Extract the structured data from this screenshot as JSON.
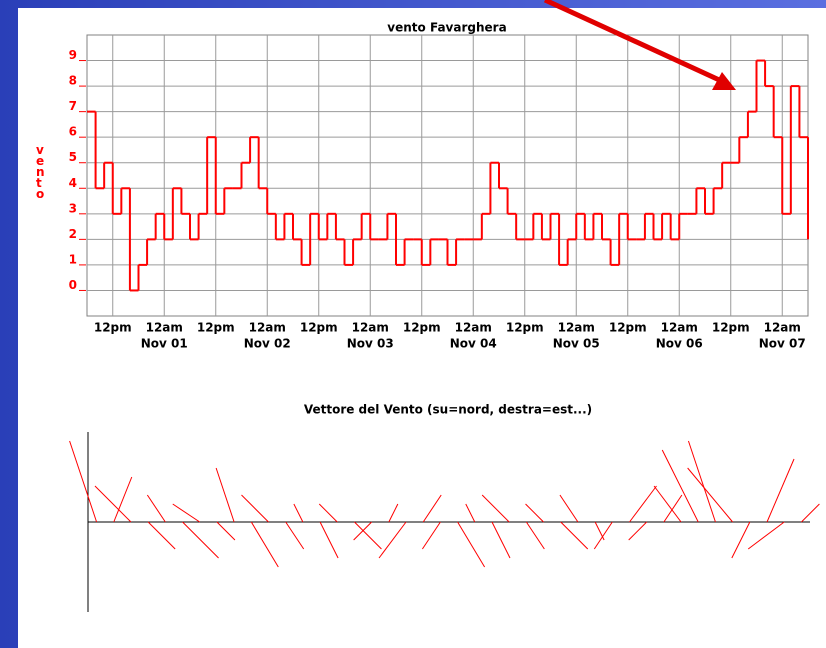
{
  "chart_data": [
    {
      "type": "step",
      "title": "vento Favarghera",
      "y_label": "vento",
      "color": "#ff0000",
      "grid": true,
      "xlim": [
        -18,
        150
      ],
      "ylim": [
        -1,
        10
      ],
      "yticks": [
        0,
        1,
        2,
        3,
        4,
        5,
        6,
        7,
        8,
        9
      ],
      "xticks": [
        {
          "value": -12,
          "label": "12pm"
        },
        {
          "value": 0,
          "label": "12am"
        },
        {
          "value": 12,
          "label": "12pm"
        },
        {
          "value": 24,
          "label": "12am"
        },
        {
          "value": 36,
          "label": "12pm"
        },
        {
          "value": 48,
          "label": "12am"
        },
        {
          "value": 60,
          "label": "12pm"
        },
        {
          "value": 72,
          "label": "12am"
        },
        {
          "value": 84,
          "label": "12pm"
        },
        {
          "value": 96,
          "label": "12am"
        },
        {
          "value": 108,
          "label": "12pm"
        },
        {
          "value": 120,
          "label": "12am"
        },
        {
          "value": 132,
          "label": "12pm"
        },
        {
          "value": 144,
          "label": "12am"
        }
      ],
      "xtick_dates": [
        {
          "value": 0,
          "label": "Nov 01"
        },
        {
          "value": 24,
          "label": "Nov 02"
        },
        {
          "value": 48,
          "label": "Nov 03"
        },
        {
          "value": 72,
          "label": "Nov 04"
        },
        {
          "value": 96,
          "label": "Nov 05"
        },
        {
          "value": 120,
          "label": "Nov 06"
        },
        {
          "value": 144,
          "label": "Nov 07"
        }
      ],
      "x": [
        -18,
        -16,
        -14,
        -12,
        -10,
        -8,
        -6,
        -4,
        -2,
        0,
        2,
        4,
        6,
        8,
        10,
        12,
        14,
        16,
        18,
        20,
        22,
        24,
        26,
        28,
        30,
        32,
        34,
        36,
        38,
        40,
        42,
        44,
        46,
        48,
        50,
        52,
        54,
        56,
        58,
        60,
        62,
        64,
        66,
        68,
        70,
        72,
        74,
        76,
        78,
        80,
        82,
        84,
        86,
        88,
        90,
        92,
        94,
        96,
        98,
        100,
        102,
        104,
        106,
        108,
        110,
        112,
        114,
        116,
        118,
        120,
        122,
        124,
        126,
        128,
        130,
        132,
        134,
        136,
        138,
        140,
        142,
        144,
        146,
        148,
        150
      ],
      "values": [
        7,
        4,
        5,
        3,
        4,
        0,
        1,
        2,
        3,
        2,
        4,
        3,
        2,
        3,
        6,
        3,
        4,
        4,
        5,
        6,
        4,
        3,
        2,
        3,
        2,
        1,
        3,
        2,
        3,
        2,
        1,
        2,
        3,
        2,
        2,
        3,
        1,
        2,
        2,
        1,
        2,
        2,
        1,
        2,
        2,
        2,
        3,
        5,
        4,
        3,
        2,
        2,
        3,
        2,
        3,
        1,
        2,
        3,
        2,
        3,
        2,
        1,
        3,
        2,
        2,
        3,
        2,
        3,
        2,
        3,
        3,
        4,
        3,
        4,
        5,
        5,
        6,
        7,
        9,
        8,
        6,
        3,
        8,
        6,
        2
      ]
    },
    {
      "type": "vector",
      "title": "Vettore del Vento (su=nord, destra=est...)",
      "color": "#ff0000",
      "xlim": [
        -18,
        150
      ],
      "ylim": [
        -10,
        10
      ],
      "x": [
        -16,
        -12,
        -8,
        -4,
        0,
        4,
        8,
        12,
        16,
        20,
        24,
        28,
        32,
        36,
        40,
        44,
        48,
        52,
        56,
        60,
        64,
        68,
        72,
        76,
        80,
        84,
        88,
        92,
        96,
        100,
        104,
        108,
        112,
        116,
        120,
        124,
        128,
        132,
        136,
        140,
        144,
        148
      ],
      "u": [
        -3,
        2,
        -4,
        3,
        -2,
        4,
        -3,
        2,
        -2,
        3,
        -3,
        2,
        -1,
        2,
        -2,
        3,
        -2,
        1,
        -3,
        2,
        -2,
        3,
        -1,
        2,
        -3,
        2,
        -2,
        3,
        -2,
        1,
        -2,
        3,
        -2,
        2,
        -3,
        -4,
        -3,
        -5,
        -2,
        3,
        -4,
        2
      ],
      "v": [
        9,
        5,
        4,
        -3,
        3,
        -4,
        2,
        -2,
        6,
        -5,
        3,
        -3,
        2,
        -4,
        2,
        -3,
        -2,
        2,
        -4,
        3,
        -3,
        -5,
        2,
        -4,
        3,
        -3,
        2,
        -3,
        3,
        -2,
        -3,
        4,
        -2,
        3,
        4,
        8,
        9,
        6,
        -4,
        7,
        -3,
        2
      ]
    }
  ]
}
